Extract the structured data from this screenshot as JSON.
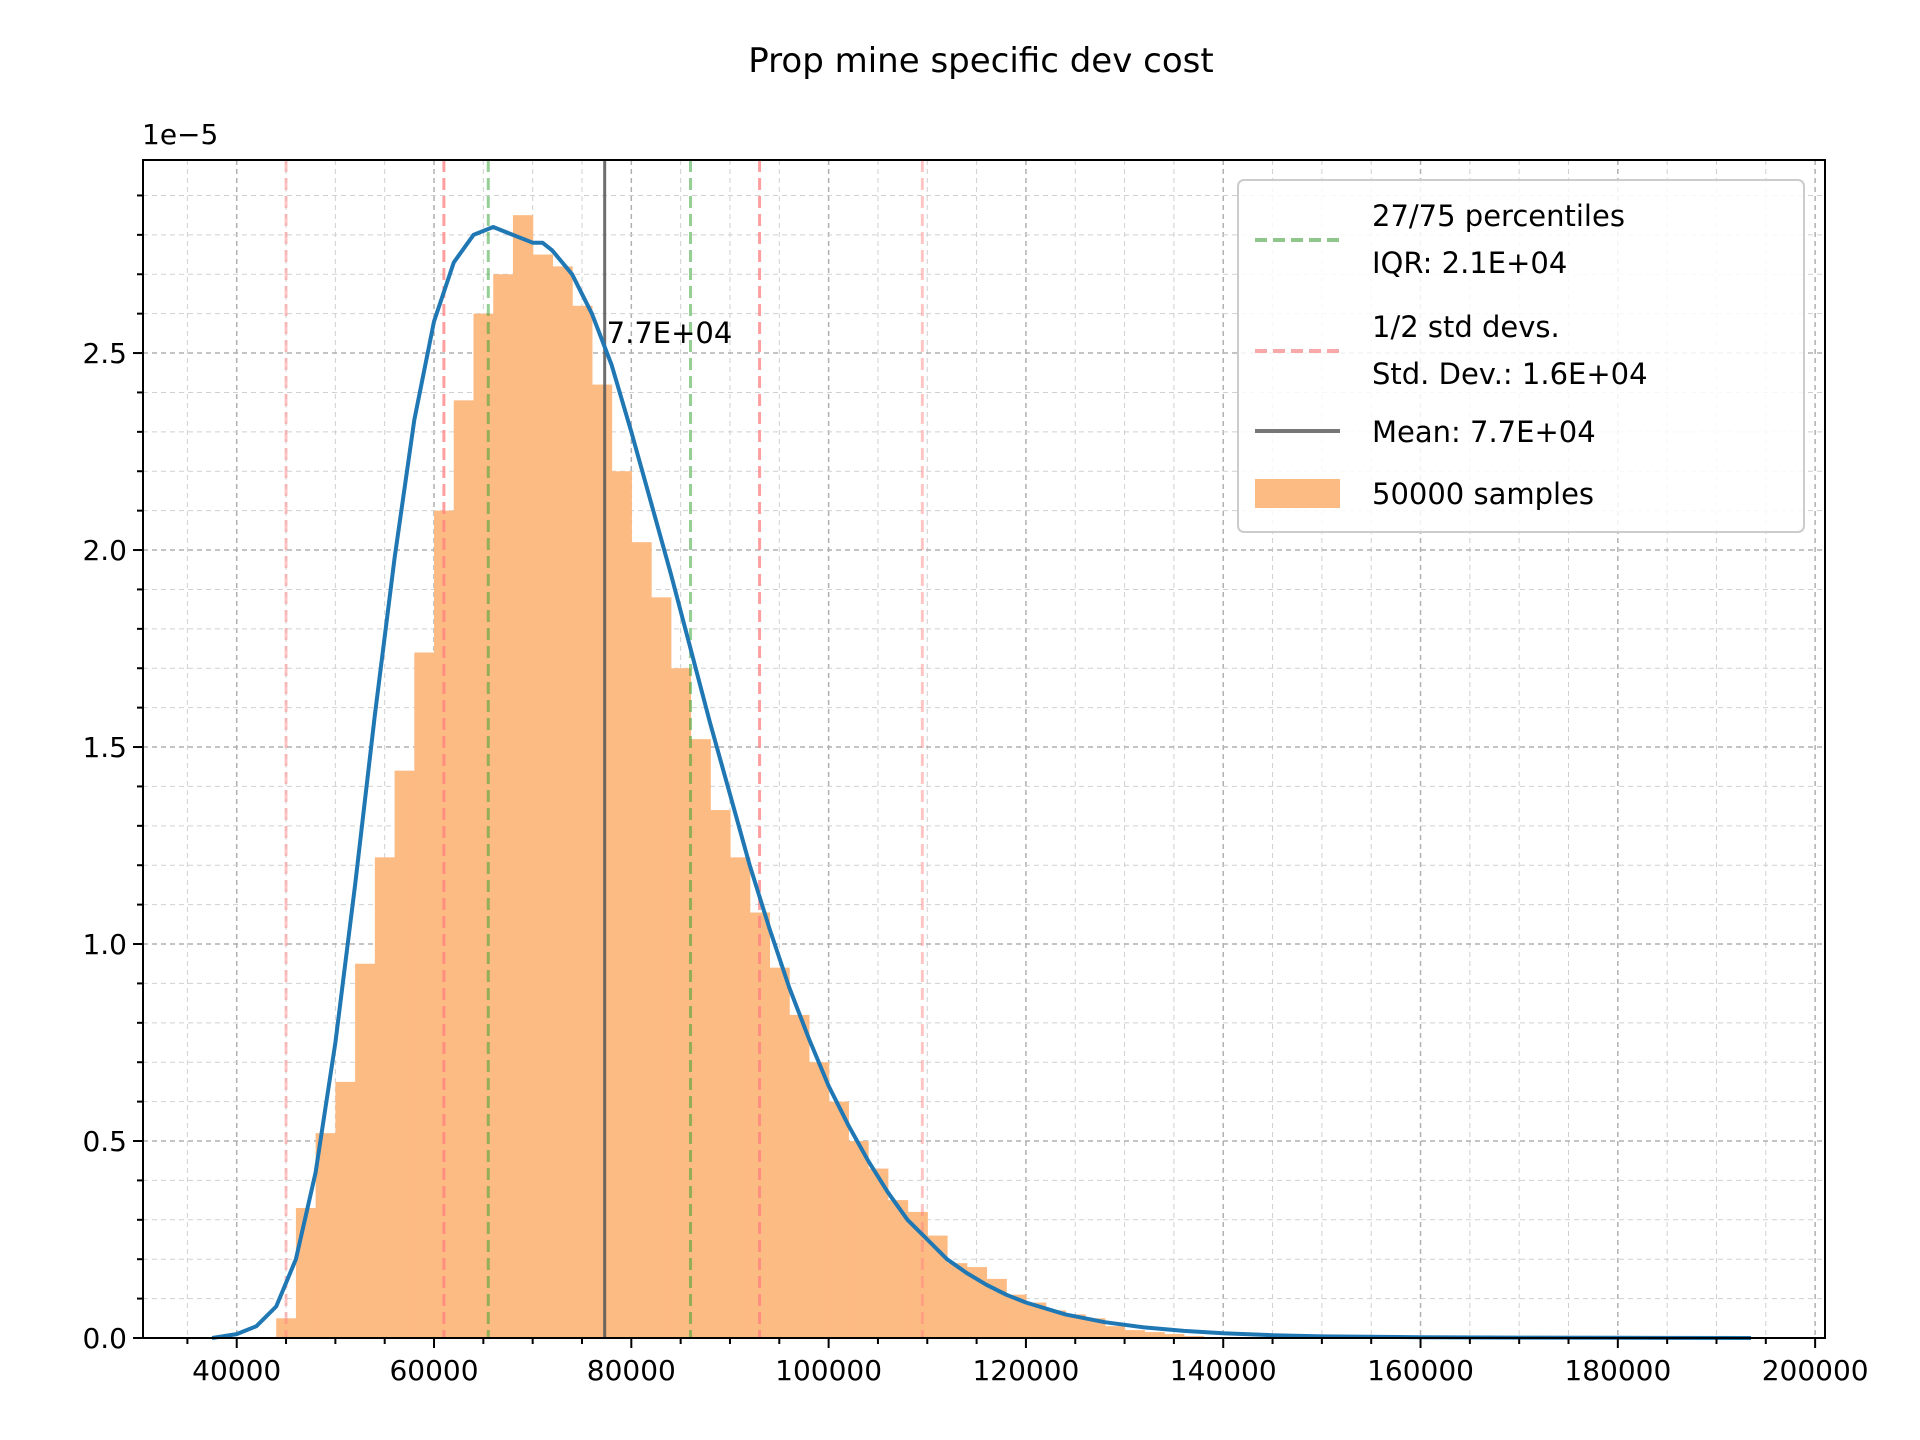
{
  "chart_data": {
    "type": "histogram",
    "title": "Prop mine specific dev cost",
    "xlabel": "",
    "ylabel": "",
    "xlim": [
      30500,
      201000
    ],
    "ylim": [
      0,
      2.99
    ],
    "y_scale_label": "1e−5",
    "x_ticks": [
      40000,
      60000,
      80000,
      100000,
      120000,
      140000,
      160000,
      180000,
      200000
    ],
    "x_tick_labels": [
      "40000",
      "60000",
      "80000",
      "100000",
      "120000",
      "140000",
      "160000",
      "180000",
      "200000"
    ],
    "y_ticks": [
      0.0,
      0.5,
      1.0,
      1.5,
      2.0,
      2.5
    ],
    "y_tick_labels": [
      "0.0",
      "0.5",
      "1.0",
      "1.5",
      "2.0",
      "2.5"
    ],
    "grid": true,
    "legend_position": "top-right",
    "histogram": {
      "name": "50000 samples",
      "color": "#fdbb84",
      "bin_edges": [
        44000,
        46000,
        48000,
        50000,
        52000,
        54000,
        56000,
        58000,
        60000,
        62000,
        64000,
        66000,
        68000,
        70000,
        72000,
        74000,
        76000,
        78000,
        80000,
        82000,
        84000,
        86000,
        88000,
        90000,
        92000,
        94000,
        96000,
        98000,
        100000,
        102000,
        104000,
        106000,
        108000,
        110000,
        112000,
        114000,
        116000,
        118000,
        120000,
        122000,
        124000,
        126000,
        128000,
        130000,
        132000,
        134000,
        136000,
        138000
      ],
      "densities": [
        0.05,
        0.33,
        0.52,
        0.65,
        0.95,
        1.22,
        1.44,
        1.74,
        2.1,
        2.38,
        2.6,
        2.7,
        2.85,
        2.75,
        2.72,
        2.62,
        2.42,
        2.2,
        2.02,
        1.88,
        1.7,
        1.52,
        1.34,
        1.22,
        1.08,
        0.94,
        0.82,
        0.7,
        0.6,
        0.5,
        0.43,
        0.35,
        0.32,
        0.26,
        0.19,
        0.18,
        0.15,
        0.11,
        0.09,
        0.07,
        0.06,
        0.05,
        0.03,
        0.02,
        0.015,
        0.01,
        0.005
      ]
    },
    "fit_curve": {
      "color": "#1f77b4",
      "x": [
        37500,
        40000,
        42000,
        44000,
        46000,
        48000,
        50000,
        52000,
        54000,
        56000,
        58000,
        60000,
        62000,
        64000,
        66000,
        68000,
        70000,
        71000,
        72000,
        74000,
        76000,
        78000,
        80000,
        82000,
        84000,
        86000,
        88000,
        90000,
        92000,
        94000,
        96000,
        98000,
        100000,
        102000,
        104000,
        106000,
        108000,
        110000,
        112000,
        114000,
        116000,
        118000,
        120000,
        124000,
        128000,
        132000,
        136000,
        140000,
        145000,
        150000,
        160000,
        170000,
        180000,
        193500
      ],
      "y": [
        0.0,
        0.01,
        0.03,
        0.08,
        0.2,
        0.42,
        0.75,
        1.15,
        1.58,
        1.98,
        2.33,
        2.58,
        2.73,
        2.8,
        2.82,
        2.8,
        2.78,
        2.78,
        2.76,
        2.7,
        2.6,
        2.47,
        2.3,
        2.12,
        1.94,
        1.75,
        1.56,
        1.38,
        1.2,
        1.04,
        0.89,
        0.76,
        0.64,
        0.54,
        0.45,
        0.37,
        0.3,
        0.25,
        0.2,
        0.165,
        0.135,
        0.11,
        0.09,
        0.06,
        0.04,
        0.027,
        0.018,
        0.012,
        0.007,
        0.004,
        0.002,
        0.001,
        0.0005,
        0.0
      ]
    },
    "vertical_lines": [
      {
        "name": "27/75 percentiles",
        "style": "dashed",
        "color": "#2ca02c",
        "x": [
          65500,
          86000
        ]
      },
      {
        "name": "1/2 std devs.",
        "style": "dashed",
        "color": "#ff7f7f",
        "x_sd1": [
          61000,
          93000
        ],
        "x_sd2": [
          45000,
          109500
        ]
      },
      {
        "name": "Mean",
        "style": "solid",
        "color": "#555555",
        "x": [
          77300
        ]
      }
    ],
    "annotation": {
      "text": "7.7E+04",
      "x": 77300,
      "y": 2.5
    },
    "legend": [
      {
        "label": "27/75 percentiles",
        "label2": "IQR: 2.1E+04",
        "kind": "dashed",
        "color": "#8fc68c"
      },
      {
        "label": "1/2 std devs.",
        "label2": " Std. Dev.: 1.6E+04",
        "kind": "dashed",
        "color": "#f7a8a8"
      },
      {
        "label": "Mean: 7.7E+04",
        "label2": "",
        "kind": "solid",
        "color": "#777777"
      },
      {
        "label": "50000 samples",
        "label2": "",
        "kind": "patch",
        "color": "#fdbb84"
      }
    ]
  }
}
